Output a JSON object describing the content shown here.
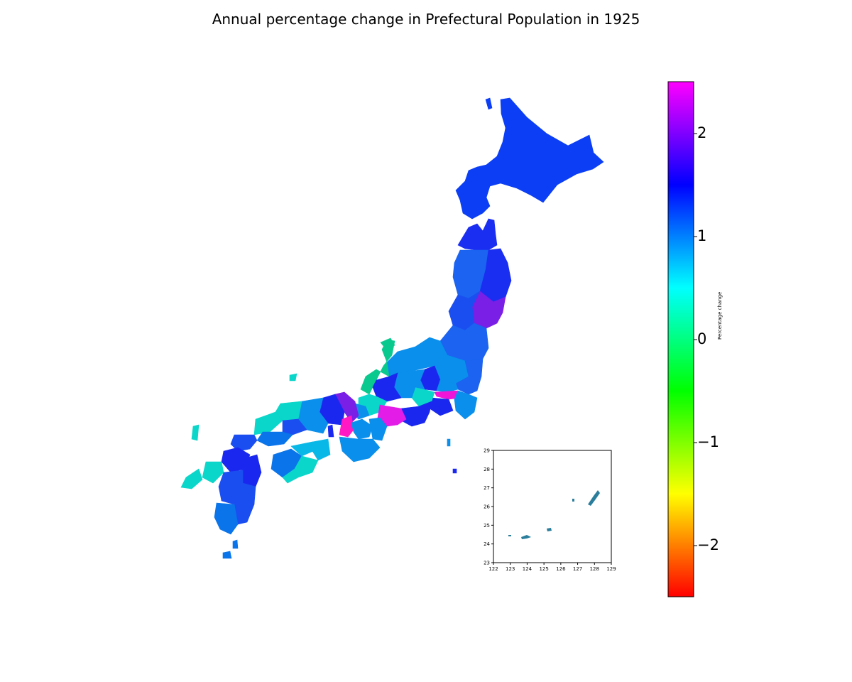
{
  "title": "Annual percentage change in Prefectural Population in 1925",
  "colorbar": {
    "label": "Percentage change",
    "range": [
      -2.5,
      2.5
    ],
    "ticks": [
      "−2",
      "−1",
      "0",
      "1",
      "2"
    ],
    "colors": [
      "#ff0000",
      "#ff7f00",
      "#ffff00",
      "#7fff00",
      "#00ff00",
      "#00ff80",
      "#00ffff",
      "#0080ff",
      "#0000ff",
      "#8000ff",
      "#ff00ff"
    ]
  },
  "inset": {
    "x_ticks": [
      "122",
      "123",
      "124",
      "125",
      "126",
      "127",
      "128",
      "129"
    ],
    "y_ticks": [
      "23",
      "24",
      "25",
      "26",
      "27",
      "28",
      "29"
    ],
    "region_color": "#2a7d9b"
  },
  "region_colors": {
    "hokkaido": "#0b3ef5",
    "tohoku_north": "#1a2ef2",
    "tohoku_mid": "#1b63f0",
    "miyagi": "#7a1fe6",
    "niigata_coast": "#0ac98f",
    "kanto_light": "#0a8fec",
    "tokyo": "#f014d8",
    "aichi": "#e31ce8",
    "osaka": "#ff18c4",
    "kansai_dark": "#1a28ef",
    "sanin": "#0ad6c9",
    "shikoku": "#0ab8e8",
    "kyushu": "#1a4ef0",
    "kyushu_south": "#0a74ea"
  }
}
